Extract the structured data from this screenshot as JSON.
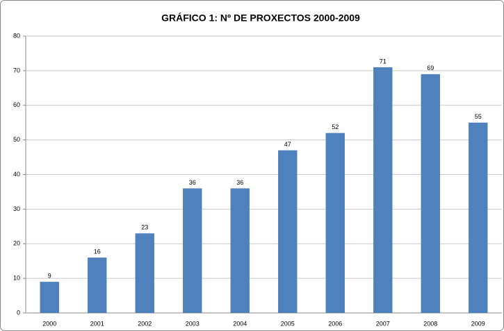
{
  "chart_data": {
    "type": "bar",
    "title": "GRÁFICO 1: Nº DE PROXECTOS  2000-2009",
    "categories": [
      "2000",
      "2001",
      "2002",
      "2003",
      "2004",
      "2005",
      "2006",
      "2007",
      "2008",
      "2009"
    ],
    "values": [
      9,
      16,
      23,
      36,
      36,
      47,
      52,
      71,
      69,
      55
    ],
    "color": "#4f81bd",
    "ylim": [
      0,
      80
    ],
    "yticks": [
      0,
      10,
      20,
      30,
      40,
      50,
      60,
      70,
      80
    ],
    "grid": true
  }
}
